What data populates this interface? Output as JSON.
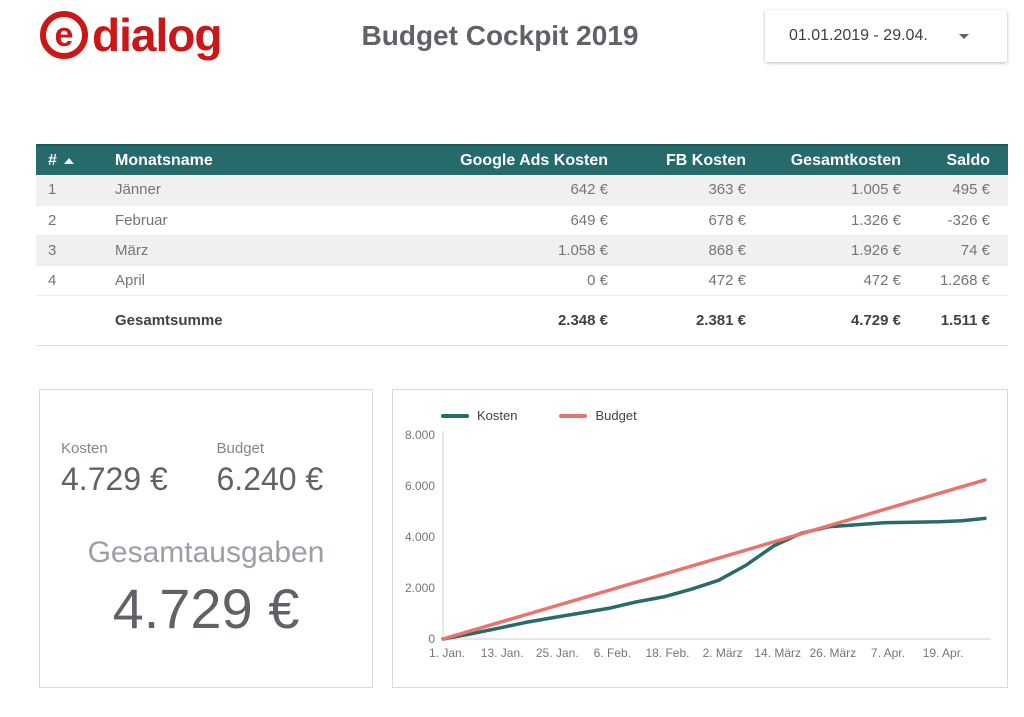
{
  "header": {
    "logo": {
      "e": "e",
      "name": "dialog"
    },
    "title": "Budget Cockpit 2019",
    "date_range": "01.01.2019 - 29.04."
  },
  "colors": {
    "brand_red": "#cc1719",
    "table_header_bg": "#266a6b",
    "kosten_line": "#2a6b69",
    "budget_line": "#e8736f"
  },
  "table": {
    "columns": {
      "num": "#",
      "month": "Monatsname",
      "google": "Google Ads Kosten",
      "fb": "FB Kosten",
      "total": "Gesamtkosten",
      "saldo": "Saldo"
    },
    "sort": {
      "column": "#",
      "direction": "asc"
    },
    "rows": [
      {
        "num": "1",
        "month": "Jänner",
        "google": "642 €",
        "fb": "363 €",
        "total": "1.005 €",
        "saldo": "495 €"
      },
      {
        "num": "2",
        "month": "Februar",
        "google": "649 €",
        "fb": "678 €",
        "total": "1.326 €",
        "saldo": "-326 €"
      },
      {
        "num": "3",
        "month": "März",
        "google": "1.058 €",
        "fb": "868 €",
        "total": "1.926 €",
        "saldo": "74 €"
      },
      {
        "num": "4",
        "month": "April",
        "google": "0 €",
        "fb": "472 €",
        "total": "472 €",
        "saldo": "1.268 €"
      }
    ],
    "summary": {
      "label": "Gesamtsumme",
      "google": "2.348 €",
      "fb": "2.381 €",
      "total": "4.729 €",
      "saldo": "1.511 €"
    }
  },
  "scorecards": {
    "kosten": {
      "label": "Kosten",
      "value": "4.729 €"
    },
    "budget": {
      "label": "Budget",
      "value": "6.240 €"
    },
    "total": {
      "label": "Gesamtausgaben",
      "value": "4.729 €"
    }
  },
  "chart_data": {
    "type": "line",
    "title": "",
    "legend_position": "top",
    "grid": false,
    "legend": [
      {
        "name": "Kosten",
        "color": "#2a6b69"
      },
      {
        "name": "Budget",
        "color": "#e8736f"
      }
    ],
    "xlabel": "",
    "ylabel": "",
    "x_range_days": [
      0,
      118
    ],
    "x_tick_days": [
      0,
      12,
      24,
      36,
      48,
      60,
      72,
      84,
      96,
      108
    ],
    "x_tick_labels": [
      "1. Jan.",
      "13. Jan.",
      "25. Jan.",
      "6. Feb.",
      "18. Feb.",
      "2. März",
      "14. März",
      "26. März",
      "7. Apr.",
      "19. Apr."
    ],
    "ylim": [
      0,
      8000
    ],
    "y_tick_values": [
      0,
      2000,
      4000,
      6000,
      8000
    ],
    "y_ticks": [
      "0",
      "2.000",
      "4.000",
      "6.000",
      "8.000"
    ],
    "series": [
      {
        "name": "Kosten",
        "color": "#2a6b69",
        "points": [
          [
            0,
            0
          ],
          [
            6,
            200
          ],
          [
            12,
            420
          ],
          [
            18,
            650
          ],
          [
            24,
            840
          ],
          [
            30,
            1020
          ],
          [
            36,
            1200
          ],
          [
            42,
            1450
          ],
          [
            48,
            1650
          ],
          [
            54,
            1950
          ],
          [
            60,
            2300
          ],
          [
            66,
            2900
          ],
          [
            72,
            3650
          ],
          [
            78,
            4150
          ],
          [
            84,
            4400
          ],
          [
            90,
            4480
          ],
          [
            96,
            4560
          ],
          [
            102,
            4580
          ],
          [
            108,
            4600
          ],
          [
            113,
            4640
          ],
          [
            118,
            4729
          ]
        ]
      },
      {
        "name": "Budget",
        "color": "#e8736f",
        "points": [
          [
            0,
            0
          ],
          [
            118,
            6240
          ]
        ]
      }
    ]
  }
}
